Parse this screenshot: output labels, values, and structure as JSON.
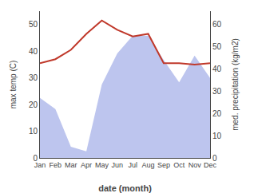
{
  "chart_data": {
    "type": "line",
    "xlabel": "date (month)",
    "ylabel": "max temp (C)",
    "y2label": "med. precipitation (kg/m2)",
    "categories": [
      "Jan",
      "Feb",
      "Mar",
      "Apr",
      "May",
      "Jun",
      "Jul",
      "Aug",
      "Sep",
      "Oct",
      "Nov",
      "Dec"
    ],
    "series": [
      {
        "type": "area",
        "axis": "y2",
        "color": "#bdc5ee",
        "values": [
          27,
          22,
          5,
          3,
          33,
          47,
          55,
          55,
          44,
          34,
          46,
          36
        ]
      },
      {
        "type": "line",
        "color": "#c0392b",
        "values": [
          35.5,
          37.0,
          40.5,
          46.5,
          51.5,
          48.0,
          45.5,
          46.5,
          35.5,
          35.5,
          35.0,
          35.5
        ]
      }
    ],
    "ylim": [
      0,
      55
    ],
    "yticks": [
      0,
      10,
      20,
      30,
      40,
      50
    ],
    "y2lim": [
      0,
      66
    ],
    "y2ticks": [
      0,
      10,
      20,
      30,
      40,
      50,
      60
    ],
    "grid": false
  }
}
